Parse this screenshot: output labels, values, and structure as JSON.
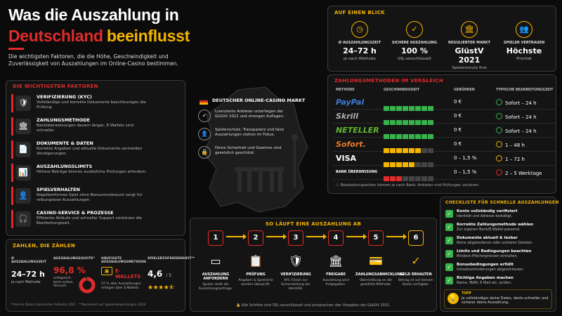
{
  "title": {
    "line1": "Was die Auszahlung in",
    "line2a": "Deutschland",
    "line2b": "beeinflusst"
  },
  "subtitle": "Die wichtigsten Faktoren, die die Höhe, Geschwindigkeit und Zuverlässigkeit von Auszahlungen im Online-Casino bestimmen.",
  "factors": {
    "title": "DIE WICHTIGSTEN FAKTOREN",
    "items": [
      {
        "h": "VERIFIZIERUNG (KYC)",
        "d": "Vollständige und korrekte Dokumente beschleunigen die Prüfung."
      },
      {
        "h": "ZAHLUNGSMETHODE",
        "d": "Banküberweisungen dauern länger, E-Wallets sind schneller."
      },
      {
        "h": "DOKUMENTE & DATEN",
        "d": "Korrekte Angaben und aktuelle Dokumente vermeiden Verzögerungen."
      },
      {
        "h": "AUSZAHLUNGSLIMITS",
        "d": "Höhere Beträge können zusätzliche Prüfungen erfordern."
      },
      {
        "h": "SPIELVERHALTEN",
        "d": "Regelkonformes Spiel ohne Bonusmissbrauch sorgt für reibungslose Auszahlungen."
      },
      {
        "h": "CASINO-SERVICE & PROZESSE",
        "d": "Effiziente Abläufe und schneller Support verkürzen die Bearbeitungszeit."
      }
    ]
  },
  "market": {
    "title": "DEUTSCHER ONLINE-CASINO MARKT",
    "items": [
      "Lizenzierte Anbieter unterliegen der GlüStV 2021 und strengen Auflagen.",
      "Spielerschutz, Transparenz und faire Auszahlungen stehen im Fokus.",
      "Deine Sicherheit und Gewinne sind gesetzlich geschützt."
    ]
  },
  "glance": {
    "title": "AUF EINEN BLICK",
    "items": [
      {
        "label": "Ø AUSZAHLUNGSZEIT",
        "value": "24–72 h",
        "sub": "je nach Methode"
      },
      {
        "label": "SICHERE AUSZAHLUNG",
        "value": "100 %",
        "sub": "SSL-verschlüsselt"
      },
      {
        "label": "REGULIERTER MARKT",
        "value": "GlüstV 2021",
        "sub": "Spielerschutz first"
      },
      {
        "label": "SPIELER VERTRAUEN",
        "value": "Höchste",
        "sub": "Priorität"
      }
    ]
  },
  "methods": {
    "title": "ZAHLUNGSMETHODEN IM VERGLEICH",
    "headers": [
      "METHODE",
      "GESCHWINDIGKEIT",
      "GEBÜHREN",
      "TYPISCHE BEARBEITUNGSZEIT"
    ],
    "rows": [
      {
        "name": "PayPal",
        "speed": 5,
        "fee": "0 €",
        "time": "Sofort – 24 h",
        "color": "#37b24d"
      },
      {
        "name": "Skrill",
        "speed": 5,
        "fee": "0 €",
        "time": "Sofort – 24 h",
        "color": "#37b24d"
      },
      {
        "name": "NETELLER",
        "speed": 5,
        "fee": "0 €",
        "time": "Sofort – 24 h",
        "color": "#37b24d"
      },
      {
        "name": "Sofort.",
        "speed": 4,
        "fee": "0 €",
        "time": "1 – 48 h",
        "color": "#f5b400"
      },
      {
        "name": "VISA",
        "speed": 3,
        "fee": "0 – 1,5 %",
        "time": "1 – 72 h",
        "color": "#f5b400"
      },
      {
        "name": "BANK ÜBERWEISUNG",
        "speed": 2,
        "fee": "0 – 1,5 %",
        "time": "2 – 5 Werktage",
        "color": "#e02b2b"
      }
    ],
    "note": "Bearbeitungszeiten können je nach Bank, Anbieter und Prüfungen variieren."
  },
  "checklist": {
    "title": "CHECKLISTE FÜR SCHNELLE AUSZAHLUNGEN",
    "items": [
      {
        "h": "Konto vollständig verifiziert",
        "d": "Identität und Adresse bestätigt."
      },
      {
        "h": "Korrekte Zahlungsmethode wählen",
        "d": "Zur eigenen Bank/E-Wallet passend."
      },
      {
        "h": "Dokumente aktuell & lesbar",
        "d": "Keine abgelaufenen oder unklaren Dateien."
      },
      {
        "h": "Limits und Bedingungen beachten",
        "d": "Mindest-/Höchstgrenzen einhalten."
      },
      {
        "h": "Bonusbedingungen erfüllt",
        "d": "Umsatzanforderungen abgeschlossen."
      },
      {
        "h": "Richtige Angaben machen",
        "d": "Name, IBAN, E-Mail etc. prüfen."
      }
    ],
    "tip_label": "TIPP",
    "tip_text": "Je vollständiger deine Daten, desto schneller und sicherer deine Auszahlung."
  },
  "steps": {
    "title": "SO LÄUFT EINE AUSZAHLUNG AB",
    "items": [
      {
        "n": "1",
        "h": "AUSZAHLUNG ANFORDERN",
        "d": "Spieler stellt die Auszahlungsanfrage."
      },
      {
        "n": "2",
        "h": "PRÜFUNG",
        "d": "Angaben & Spielserie werden überprüft."
      },
      {
        "n": "3",
        "h": "VERIFIZIERUNG",
        "d": "KYC-Check zur Sicherstellung der Identität."
      },
      {
        "n": "4",
        "h": "FREIGABE",
        "d": "Auszahlung wird freigegeben."
      },
      {
        "n": "5",
        "h": "ZAHLUNGSABWICKLUNG",
        "d": "Übermittlung an die gewählte Methode."
      },
      {
        "n": "6",
        "h": "GELD ERHALTEN",
        "d": "Betrag ist auf deinem Konto verfügbar."
      }
    ],
    "note": "Alle Schritte sind SSL-verschlüsselt und entsprechen den Vorgaben der GlüStV 2021."
  },
  "stats": {
    "title": "ZAHLEN, DIE ZÄHLEN",
    "items": [
      {
        "label": "Ø AUSZAHLUNGSZEIT",
        "value": "24–72 h",
        "sub": "je nach Methode"
      },
      {
        "label": "AUSZAHLUNGSQUOTE*",
        "value": "96,8 %",
        "sub": "erfolgreich beim ersten Versuch"
      },
      {
        "label": "HÄUFIGSTE AUSZAHLUNGSMETHODE",
        "value": "E-WALLETS",
        "sub": "57 % aller Auszahlungen erfolgen über E-Wallets"
      },
      {
        "label": "SPIELERZUFRIEDENHEIT**",
        "value": "4,6",
        "value_suffix": "/ 5"
      }
    ],
    "quota_fraction": 0.968,
    "rating": 4.6,
    "footnote": "*Interne Daten lizenzierter Anbieter (DE)   **Basierend auf Spielerbewertungen 2024"
  },
  "colors": {
    "accent_red": "#e02b2b",
    "accent_yellow": "#f5b400",
    "green": "#37b24d"
  }
}
